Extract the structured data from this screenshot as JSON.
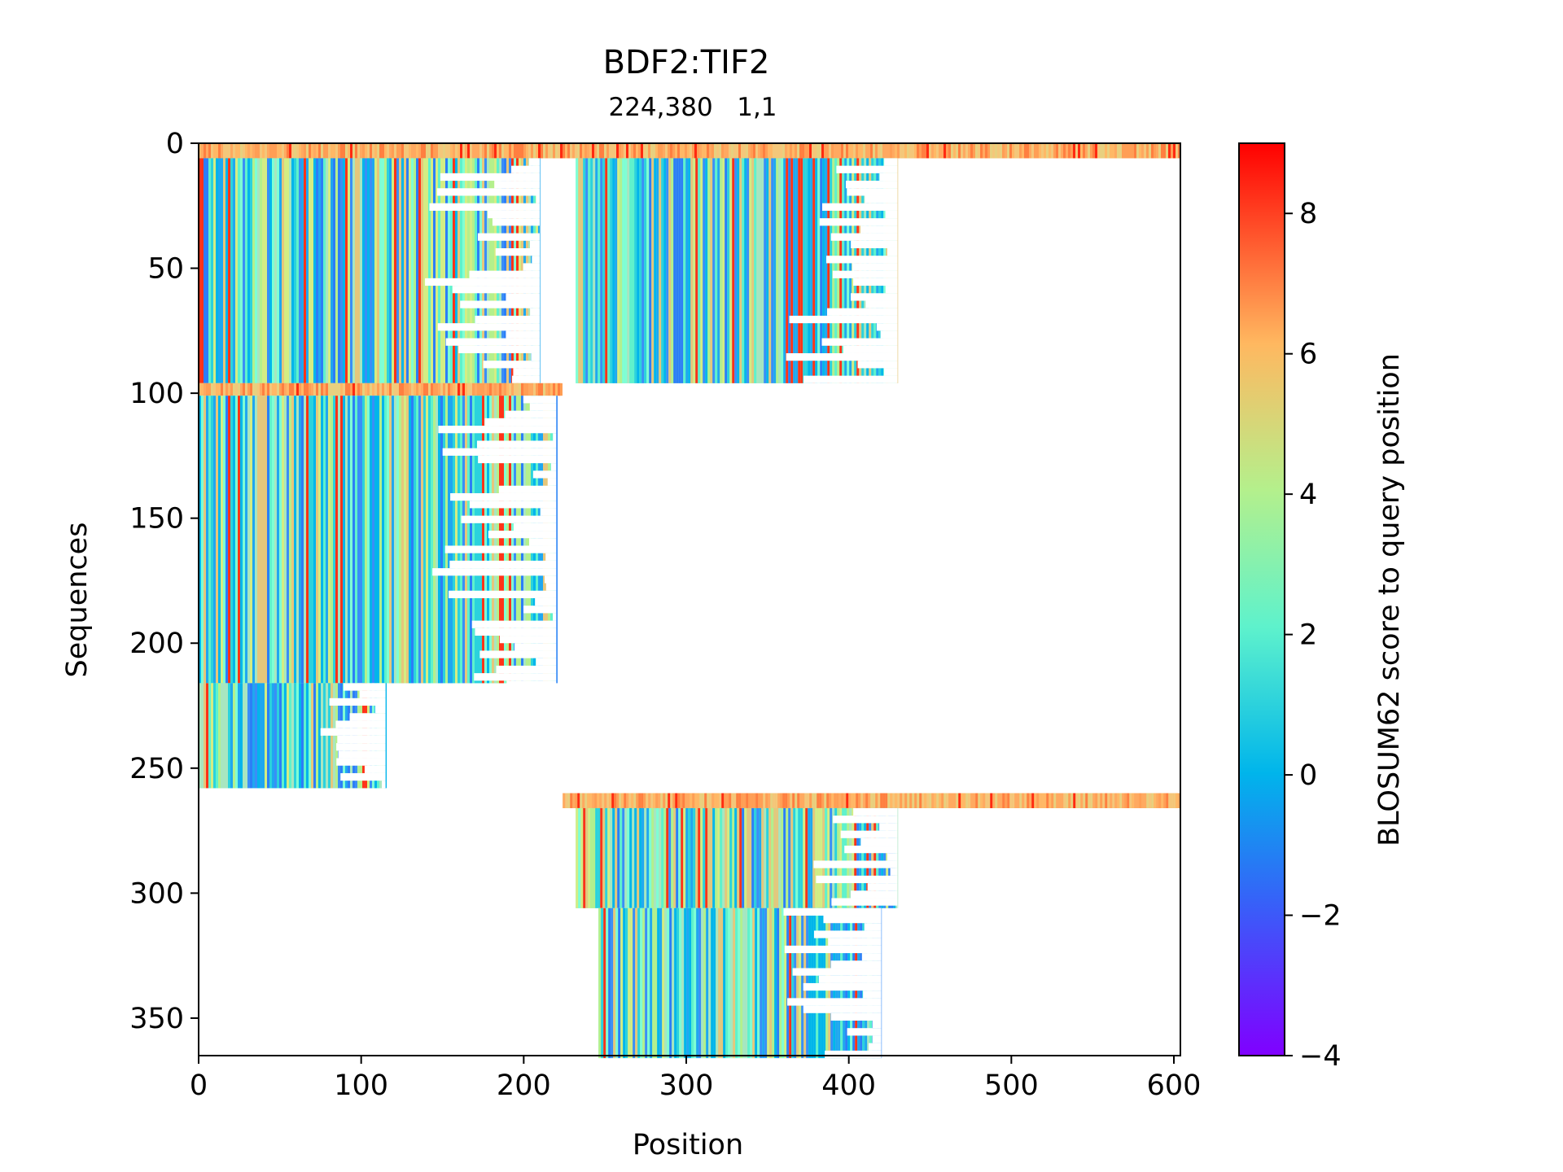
{
  "chart_data": {
    "type": "heatmap",
    "title": "BDF2:TIF2",
    "subtitle": "224,380   1,1",
    "xlabel": "Position",
    "ylabel": "Sequences",
    "xlim": [
      0,
      604
    ],
    "ylim": [
      365,
      0
    ],
    "x_ticks": [
      0,
      100,
      200,
      300,
      400,
      500,
      600
    ],
    "y_ticks": [
      0,
      50,
      100,
      150,
      200,
      250,
      300,
      350
    ],
    "colorbar": {
      "label": "BLOSUM62 score to query position",
      "min": -4,
      "max": 9,
      "ticks": [
        -4,
        -2,
        0,
        2,
        4,
        6,
        8
      ],
      "colormap": "rainbow",
      "colors": [
        "#8000ff",
        "#2c7ef7",
        "#00b5eb",
        "#7fffd4",
        "#d4ed83",
        "#ff7f40",
        "#ff0000"
      ]
    },
    "blocks": [
      {
        "name": "query row chain 1",
        "x": [
          0,
          604
        ],
        "rows": [
          0,
          5
        ],
        "score": "high"
      },
      {
        "name": "chain 1 homologs A",
        "x": [
          0,
          210
        ],
        "rows": [
          6,
          95
        ],
        "score": "mixed"
      },
      {
        "name": "chain 2 homologs A",
        "x": [
          232,
          430
        ],
        "rows": [
          6,
          95
        ],
        "score": "mixed"
      },
      {
        "name": "query row chain 1 (paired)",
        "x": [
          0,
          223
        ],
        "rows": [
          96,
          100
        ],
        "score": "high"
      },
      {
        "name": "chain 1 homologs B",
        "x": [
          0,
          220
        ],
        "rows": [
          101,
          215
        ],
        "score": "mixed"
      },
      {
        "name": "chain 1 homologs C",
        "x": [
          0,
          115
        ],
        "rows": [
          216,
          257
        ],
        "score": "mixed"
      },
      {
        "name": "query row chain 2",
        "x": [
          224,
          604
        ],
        "rows": [
          260,
          265
        ],
        "score": "high"
      },
      {
        "name": "chain 2 homologs B",
        "x": [
          232,
          430
        ],
        "rows": [
          266,
          305
        ],
        "score": "mixed"
      },
      {
        "name": "chain 2 homologs C",
        "x": [
          246,
          420
        ],
        "rows": [
          306,
          365
        ],
        "score": "mixed"
      }
    ]
  }
}
